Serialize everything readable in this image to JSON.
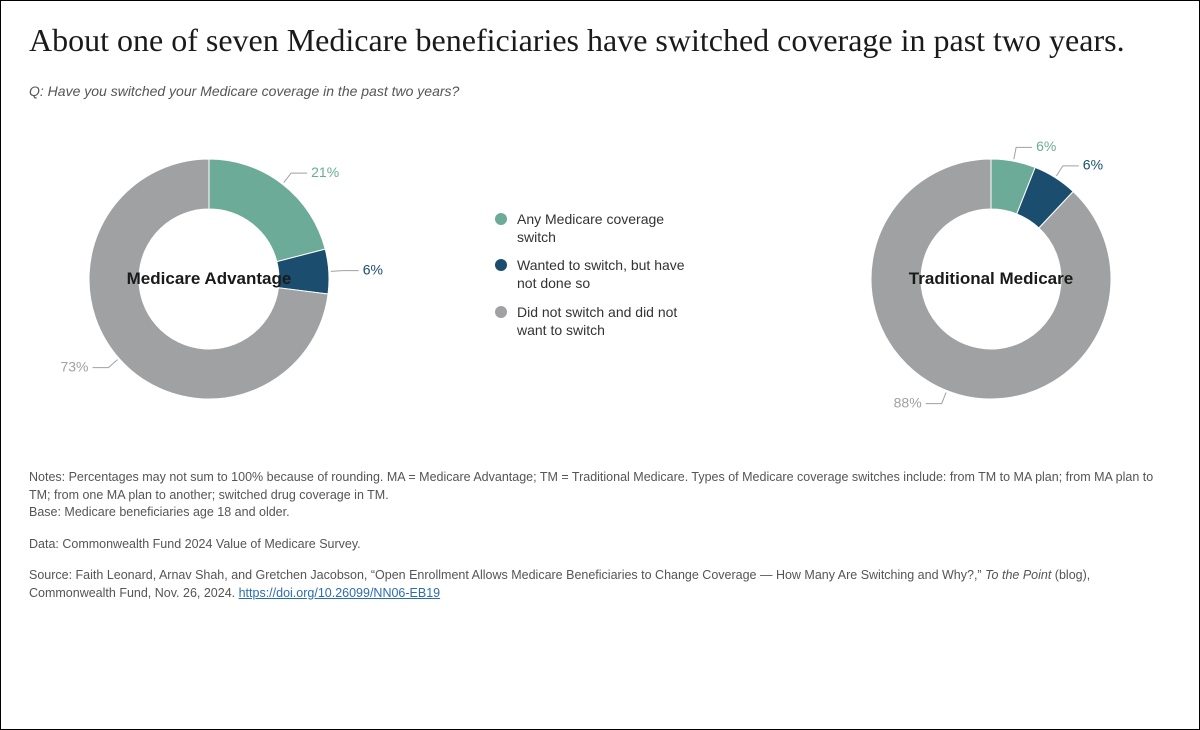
{
  "title": "About one of seven Medicare beneficiaries have switched coverage in past two years.",
  "question": "Q: Have you switched your Medicare coverage in the past two years?",
  "legend": [
    {
      "label": "Any Medicare coverage switch",
      "color": "#6cab97"
    },
    {
      "label": "Wanted to switch, but have not done so",
      "color": "#1a4d6e"
    },
    {
      "label": "Did not switch and did not want to switch",
      "color": "#9fa1a3"
    }
  ],
  "charts": [
    {
      "center_label": "Medicare Advantage",
      "type": "donut",
      "start_angle_deg": 0,
      "inner_radius": 70,
      "outer_radius": 120,
      "slices": [
        {
          "value": 21,
          "color": "#6cab97",
          "label": "21%",
          "label_color": "#6cab97"
        },
        {
          "value": 6,
          "color": "#1a4d6e",
          "label": "6%",
          "label_color": "#1a4d6e"
        },
        {
          "value": 73,
          "color": "#9fa1a3",
          "label": "73%",
          "label_color": "#9fa1a3"
        }
      ]
    },
    {
      "center_label": "Traditional Medicare",
      "type": "donut",
      "start_angle_deg": 0,
      "inner_radius": 70,
      "outer_radius": 120,
      "slices": [
        {
          "value": 6,
          "color": "#6cab97",
          "label": "6%",
          "label_color": "#6cab97"
        },
        {
          "value": 6,
          "color": "#1a4d6e",
          "label": "6%",
          "label_color": "#1a4d6e"
        },
        {
          "value": 88,
          "color": "#9fa1a3",
          "label": "88%",
          "label_color": "#9fa1a3"
        }
      ]
    }
  ],
  "footer": {
    "notes": "Notes: Percentages may not sum to 100% because of rounding. MA = Medicare Advantage; TM = Traditional Medicare. Types of Medicare coverage switches include: from TM to MA plan; from MA plan to TM; from one MA plan to another; switched drug coverage in TM.\nBase: Medicare beneficiaries age 18 and older.",
    "data": "Data: Commonwealth Fund 2024 Value of Medicare Survey.",
    "source_pre": "Source: Faith Leonard, Arnav Shah, and Gretchen Jacobson, “Open Enrollment Allows Medicare Beneficiaries to Change Coverage — How Many Are Switching and Why?,” ",
    "source_ital": "To the Point",
    "source_post": " (blog), Commonwealth Fund, Nov. 26, 2024. ",
    "source_link": "https://doi.org/10.26099/NN06-EB19"
  },
  "style": {
    "leader_color": "#9fa1a3",
    "leader_width": 1
  }
}
